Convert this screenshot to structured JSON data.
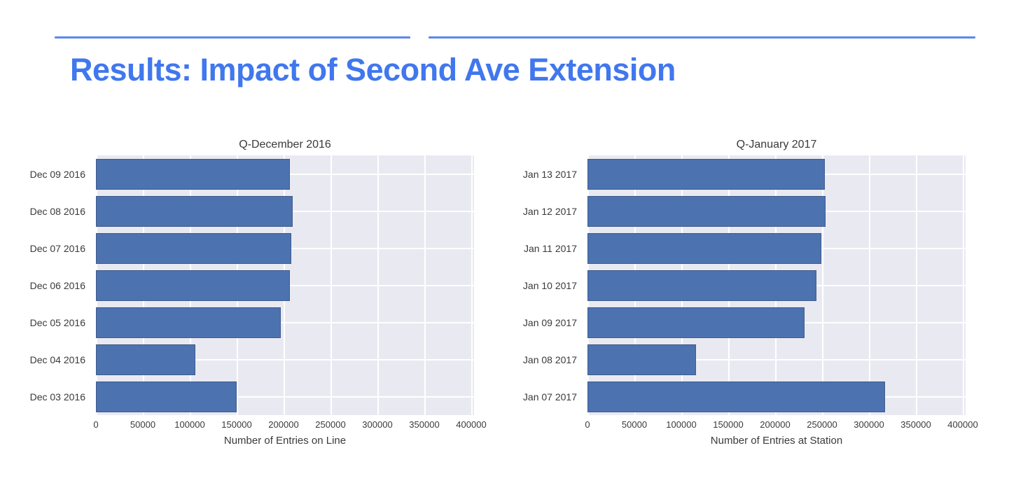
{
  "header": {
    "title": "Results: Impact of Second Ave Extension",
    "title_color": "#4177ee",
    "rule_color": "#5b87ee"
  },
  "chart_data": [
    {
      "type": "bar",
      "orientation": "horizontal",
      "title": "Q-December 2016",
      "xlabel": "Number of Entries on Line",
      "categories": [
        "Dec 09 2016",
        "Dec 08 2016",
        "Dec 07 2016",
        "Dec 06 2016",
        "Dec 05 2016",
        "Dec 04 2016",
        "Dec 03 2016"
      ],
      "values": [
        207000,
        210000,
        208000,
        207000,
        197000,
        106000,
        150000
      ],
      "xlim": [
        0,
        400000
      ],
      "xticks": [
        0,
        50000,
        100000,
        150000,
        200000,
        250000,
        300000,
        350000,
        400000
      ],
      "grid": true,
      "legend_position": "none",
      "bar_color": "#4c72b0",
      "bar_edge_color": "#3f5c8a",
      "plot_bg_color": "#e9eaf1",
      "grid_color": "#ffffff",
      "text_color": "#3a3a3a"
    },
    {
      "type": "bar",
      "orientation": "horizontal",
      "title": "Q-January 2017",
      "xlabel": "Number of Entries at Station",
      "categories": [
        "Jan 13 2017",
        "Jan 12 2017",
        "Jan 11 2017",
        "Jan 10 2017",
        "Jan 09 2017",
        "Jan 08 2017",
        "Jan 07 2017"
      ],
      "values": [
        253000,
        254000,
        249000,
        244000,
        231000,
        116000,
        317000
      ],
      "xlim": [
        0,
        400000
      ],
      "xticks": [
        0,
        50000,
        100000,
        150000,
        200000,
        250000,
        300000,
        350000,
        400000
      ],
      "grid": true,
      "legend_position": "none",
      "bar_color": "#4c72b0",
      "bar_edge_color": "#3f5c8a",
      "plot_bg_color": "#e9eaf1",
      "grid_color": "#ffffff",
      "text_color": "#3a3a3a"
    }
  ]
}
